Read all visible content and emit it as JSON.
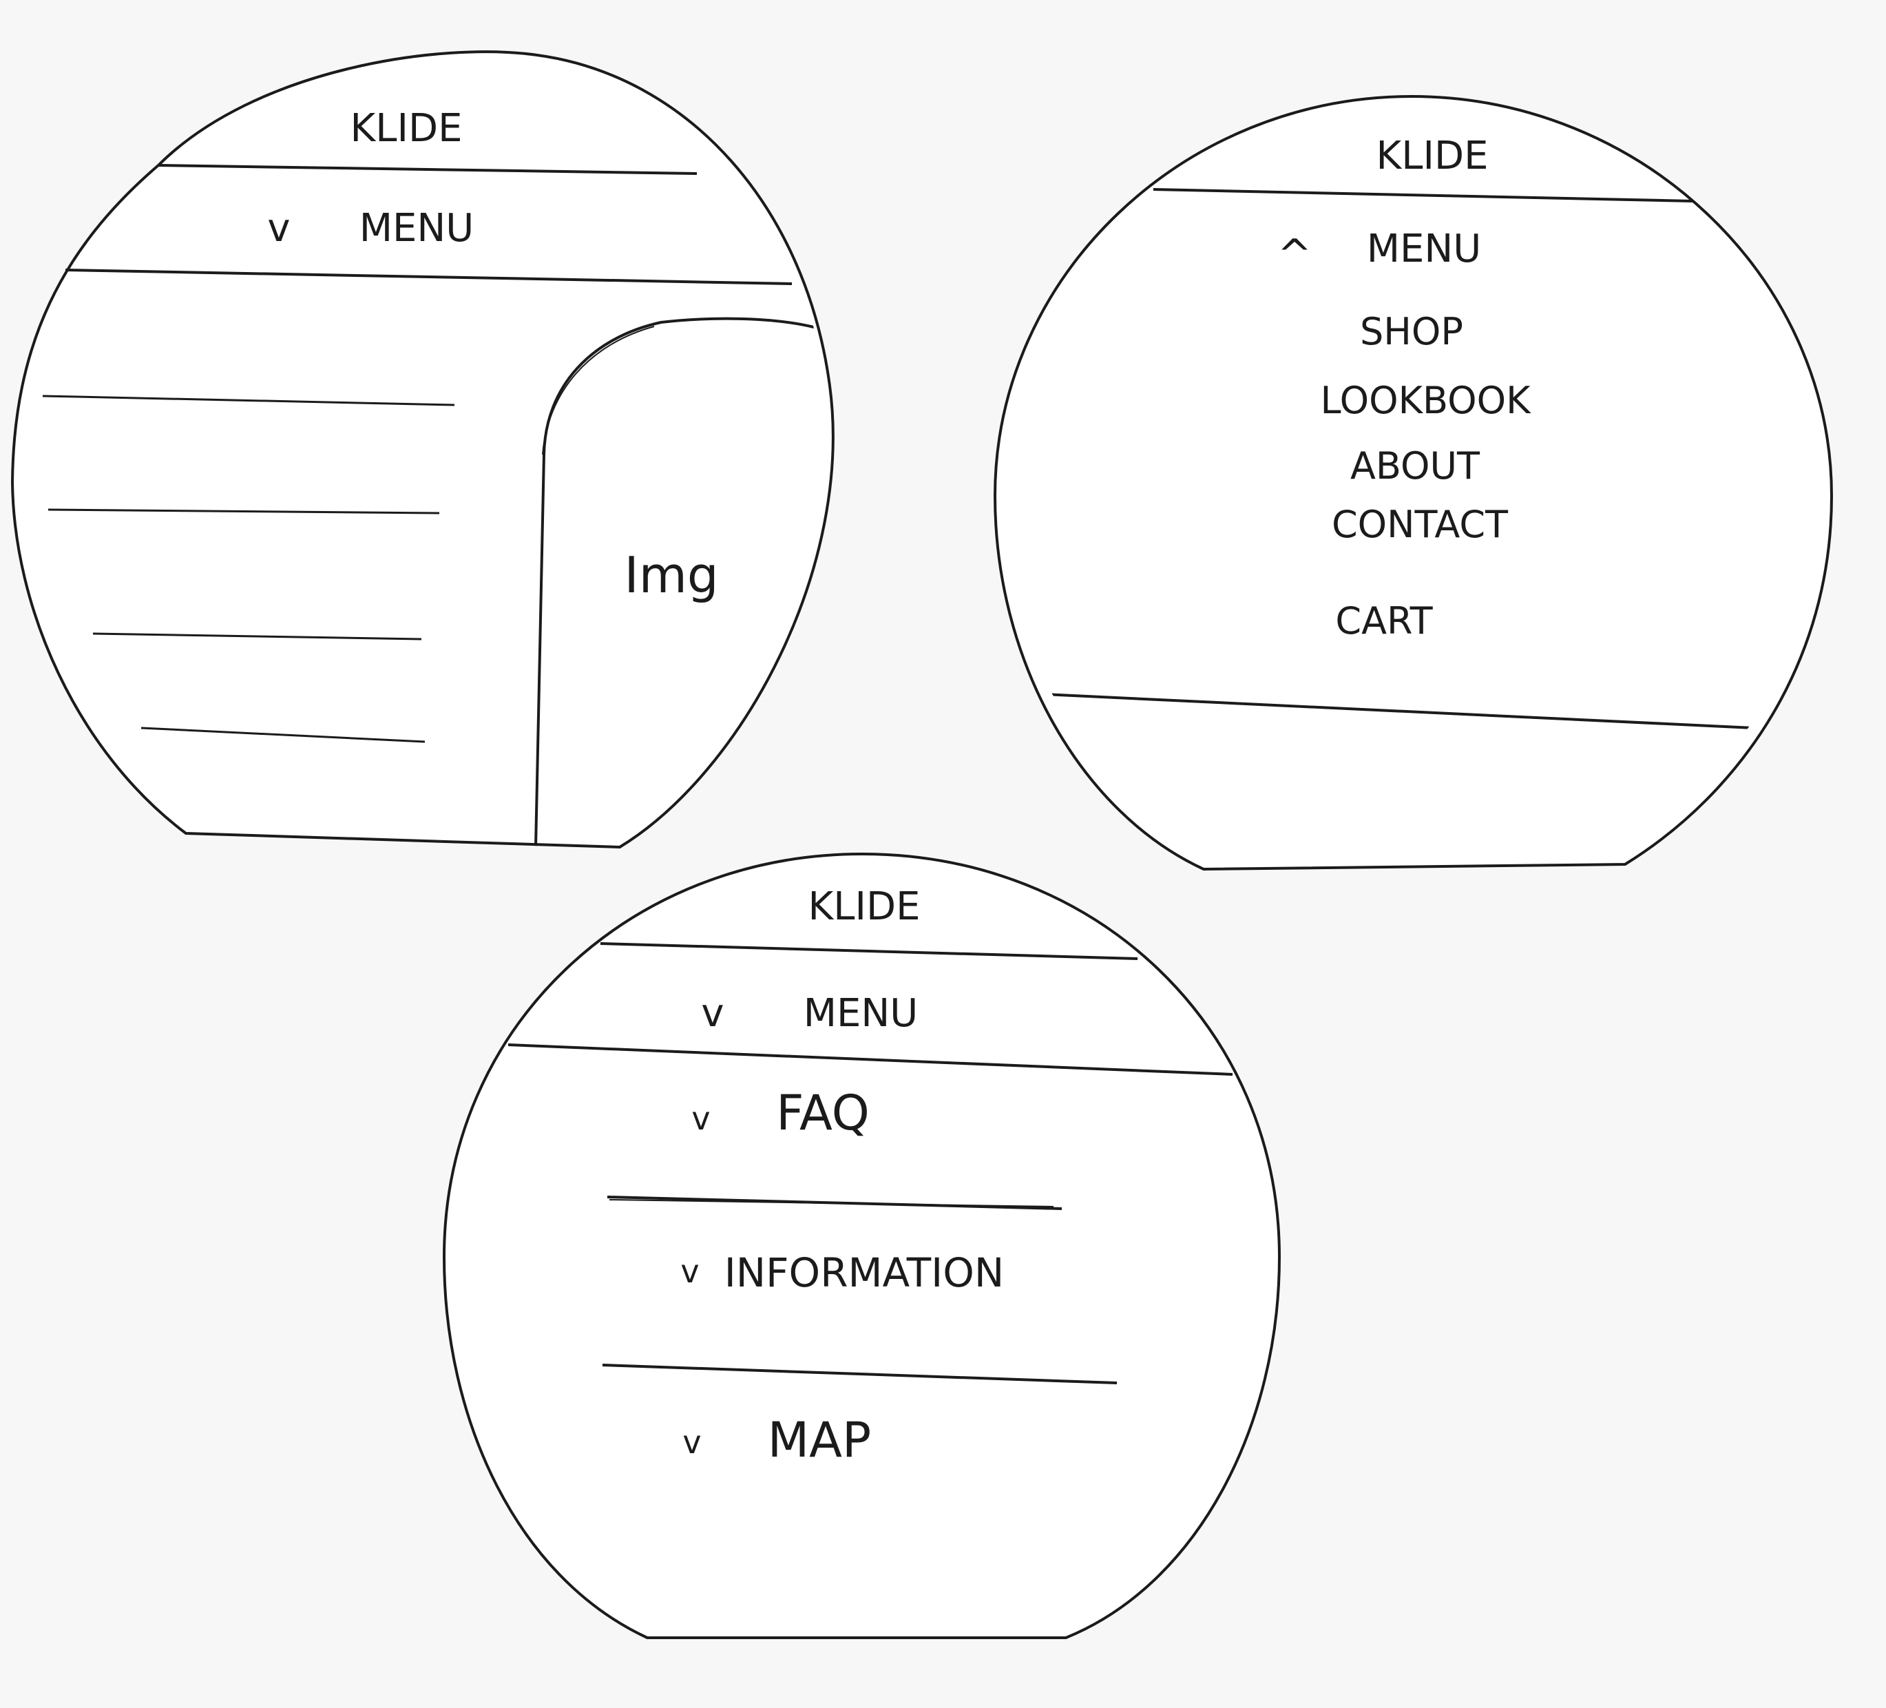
{
  "mockups": [
    {
      "id": "home",
      "brand": "KLIDE",
      "menu_toggle": {
        "chevron": "v",
        "label": "MENU",
        "state": "collapsed"
      },
      "content_lines": 4,
      "image_placeholder": "Img"
    },
    {
      "id": "menu-open",
      "brand": "KLIDE",
      "menu_toggle": {
        "chevron": "^",
        "label": "MENU",
        "state": "expanded"
      },
      "nav_items": [
        "SHOP",
        "LOOKBOOK",
        "ABOUT",
        "CONTACT",
        "CART"
      ]
    },
    {
      "id": "info",
      "brand": "KLIDE",
      "menu_toggle": {
        "chevron": "v",
        "label": "MENU",
        "state": "collapsed"
      },
      "accordion": [
        {
          "chevron": "v",
          "label": "FAQ"
        },
        {
          "chevron": "v",
          "label": "INFORMATION"
        },
        {
          "chevron": "v",
          "label": "MAP"
        }
      ]
    }
  ],
  "colors": {
    "ink": "#1b1b1b",
    "paper": "#f7f7f7",
    "circle_fill": "#ffffff"
  },
  "icon_names": [
    "chevron-down-icon",
    "chevron-up-icon"
  ]
}
